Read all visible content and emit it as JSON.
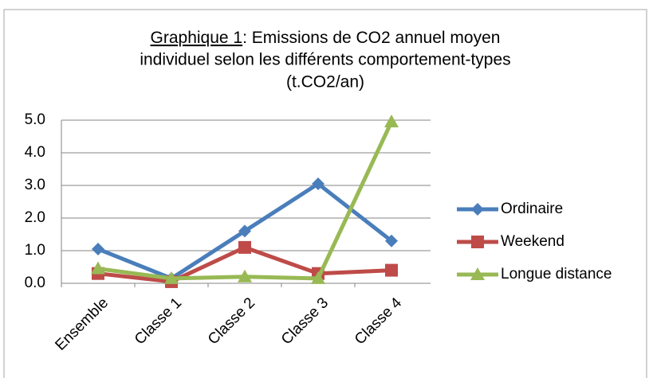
{
  "chart_data": {
    "type": "line",
    "title": {
      "label": "Graphique 1",
      "text": [
        ": Emissions de CO2 annuel moyen",
        "individuel selon les différents comportement-types",
        "(t.CO2/an)"
      ]
    },
    "categories": [
      "Ensemble",
      "Classe 1",
      "Classe 2",
      "Classe 3",
      "Classe 4"
    ],
    "series": [
      {
        "name": "Ordinaire",
        "color": "#4a7ebb",
        "marker": "diamond",
        "values": [
          1.05,
          0.15,
          1.6,
          3.05,
          1.3
        ]
      },
      {
        "name": "Weekend",
        "color": "#be4b48",
        "marker": "square",
        "values": [
          0.3,
          0.05,
          1.1,
          0.3,
          0.4
        ]
      },
      {
        "name": "Longue distance",
        "color": "#98b954",
        "marker": "triangle",
        "values": [
          0.45,
          0.15,
          0.2,
          0.15,
          4.95
        ]
      }
    ],
    "ylim": [
      0,
      5
    ],
    "yticks": [
      {
        "value": 0,
        "label": "0.0"
      },
      {
        "value": 1,
        "label": "1.0"
      },
      {
        "value": 2,
        "label": "2.0"
      },
      {
        "value": 3,
        "label": "3.0"
      },
      {
        "value": 4,
        "label": "4.0"
      },
      {
        "value": 5,
        "label": "5.0"
      }
    ],
    "grid": true,
    "legend": "right"
  }
}
